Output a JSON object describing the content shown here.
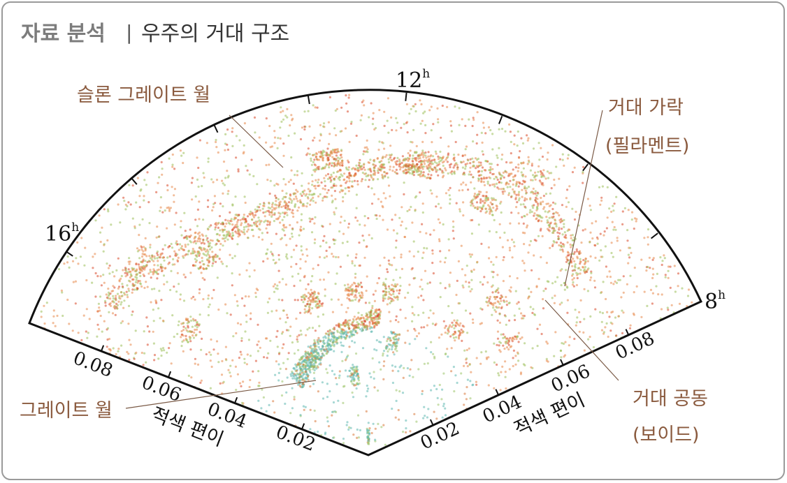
{
  "header": {
    "tag": "자료 분석",
    "separator": "|",
    "title": "우주의 거대 구조"
  },
  "diagram": {
    "hours": [
      {
        "number": "12",
        "unit": "h"
      },
      {
        "number": "16",
        "unit": "h"
      },
      {
        "number": "8",
        "unit": "h"
      }
    ],
    "left_axis": {
      "ticks": [
        "0.08",
        "0.06",
        "0.04",
        "0.02"
      ],
      "label": "적색 편이"
    },
    "right_axis": {
      "ticks": [
        "0.02",
        "0.04",
        "0.06",
        "0.08"
      ],
      "label": "적색 편이"
    },
    "annotations": {
      "sloan_wall": "슬론 그레이트 월",
      "filament": [
        "거대 가락",
        "(필라멘트)"
      ],
      "void": [
        "거대 공동",
        "(보이드)"
      ],
      "great_wall": "그레이트 월"
    }
  }
}
